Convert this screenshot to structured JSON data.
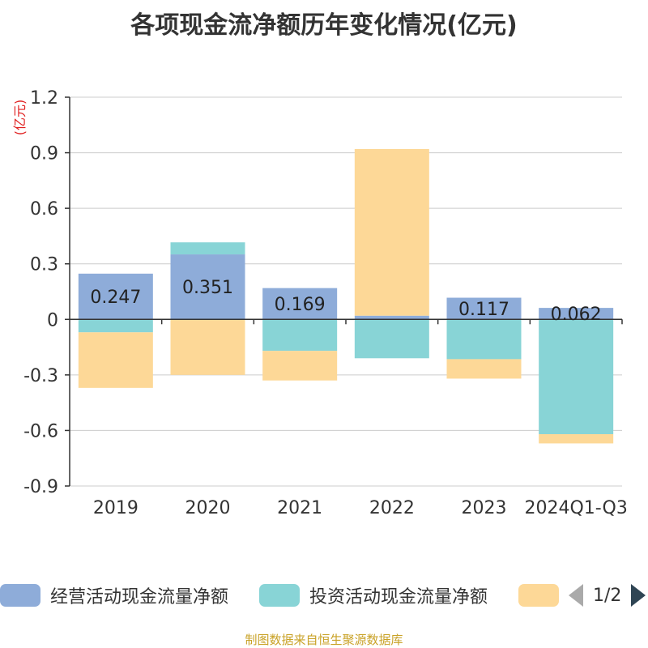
{
  "chart_data": {
    "type": "bar",
    "stacked": true,
    "title": "各项现金流净额历年变化情况(亿元)",
    "ylabel": "(亿元)",
    "categories": [
      "2019",
      "2020",
      "2021",
      "2022",
      "2023",
      "2024Q1-Q3"
    ],
    "ylim": [
      -0.9,
      1.2
    ],
    "yticks": [
      -0.9,
      -0.6,
      -0.3,
      0,
      0.3,
      0.6,
      0.9,
      1.2
    ],
    "grid": true,
    "series": [
      {
        "name": "经营活动现金流量净额",
        "color": "#8eacd9",
        "values": [
          0.247,
          0.351,
          0.169,
          0.02,
          0.117,
          0.062
        ],
        "labels": [
          "0.247",
          "0.351",
          "0.169",
          "",
          "0.117",
          "0.062"
        ]
      },
      {
        "name": "投资活动现金流量净额",
        "color": "#88d4d6",
        "values": [
          -0.07,
          0.065,
          -0.17,
          -0.21,
          -0.215,
          -0.62
        ]
      },
      {
        "name": "",
        "color": "#fdd897",
        "values": [
          -0.3,
          -0.3,
          -0.16,
          0.9,
          -0.105,
          -0.05
        ]
      }
    ],
    "legend_position": "bottom"
  },
  "legend": {
    "page_indicator": "1/2"
  },
  "source": "制图数据来自恒生聚源数据库"
}
